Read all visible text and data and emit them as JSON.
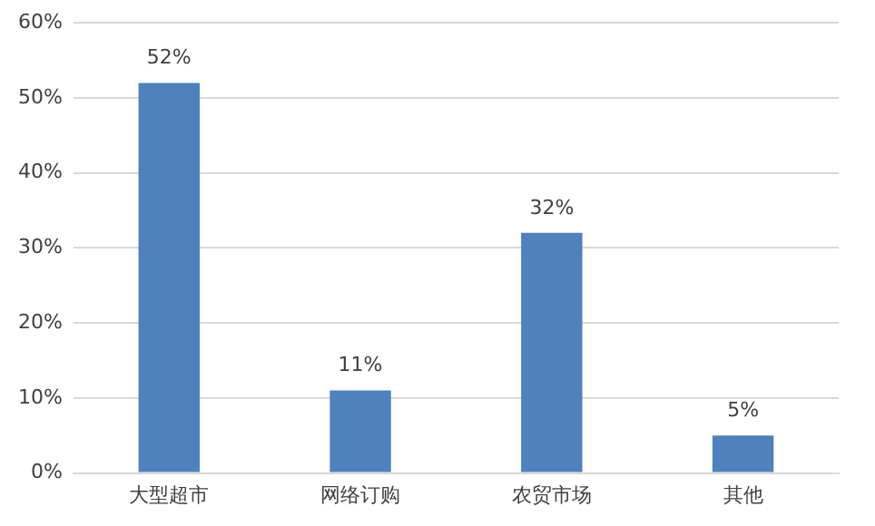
{
  "chart_data": {
    "type": "bar",
    "categories": [
      "大型超市",
      "网络订购",
      "农贸市场",
      "其他"
    ],
    "values": [
      52,
      11,
      32,
      5
    ],
    "value_labels": [
      "52%",
      "11%",
      "32%",
      "5%"
    ],
    "color": "#4f81bd",
    "ylim": [
      0,
      60
    ],
    "yticks": [
      {
        "value": 0,
        "label": "0%"
      },
      {
        "value": 10,
        "label": "10%"
      },
      {
        "value": 20,
        "label": "20%"
      },
      {
        "value": 30,
        "label": "30%"
      },
      {
        "value": 40,
        "label": "40%"
      },
      {
        "value": 50,
        "label": "50%"
      },
      {
        "value": 60,
        "label": "60%"
      }
    ],
    "grid": "y"
  }
}
